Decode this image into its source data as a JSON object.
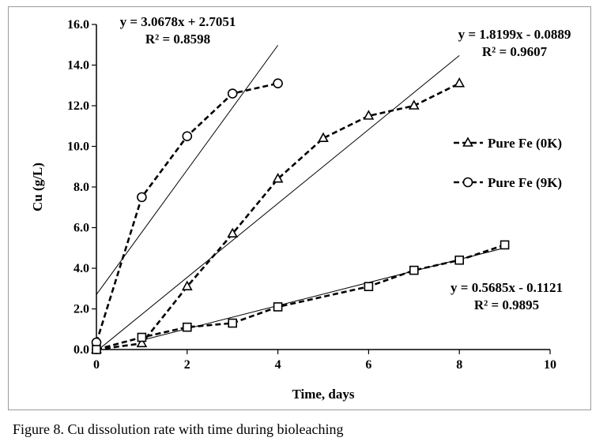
{
  "caption": "Figure 8. Cu dissolution rate with time during bioleaching",
  "chart_data": {
    "type": "scatter",
    "xlabel": "Time, days",
    "ylabel": "Cu (g/L)",
    "xlim": [
      0,
      10
    ],
    "ylim": [
      0,
      16
    ],
    "x_ticks": [
      "0",
      "2",
      "4",
      "6",
      "8",
      "10"
    ],
    "y_ticks": [
      "0.0",
      "2.0",
      "4.0",
      "6.0",
      "8.0",
      "10.0",
      "12.0",
      "14.0",
      "16.0"
    ],
    "grid": false,
    "legend_position": "right",
    "series": [
      {
        "name": "Pure Fe (0K)",
        "marker": "triangle",
        "line_style": "dashed",
        "color": "#000000",
        "x": [
          0,
          1,
          2,
          3,
          4,
          5,
          6,
          7,
          8
        ],
        "y": [
          0.0,
          0.3,
          3.1,
          5.7,
          8.4,
          10.4,
          11.5,
          12.0,
          13.1
        ]
      },
      {
        "name": "Pure Fe (9K)",
        "marker": "circle",
        "line_style": "dashed",
        "color": "#000000",
        "x": [
          0,
          1,
          2,
          3,
          4
        ],
        "y": [
          0.35,
          7.5,
          10.5,
          12.6,
          13.1
        ]
      },
      {
        "marker": "square",
        "line_style": "dashed",
        "color": "#000000",
        "x": [
          0,
          1,
          2,
          3,
          4,
          6,
          7,
          8,
          9
        ],
        "y": [
          0.0,
          0.6,
          1.1,
          1.3,
          2.1,
          3.1,
          3.9,
          4.4,
          5.15
        ]
      }
    ],
    "trendlines": [
      {
        "slope": 3.0678,
        "intercept": 2.7051,
        "x_range": [
          0,
          4
        ],
        "equation": "y = 3.0678x + 2.7051",
        "r2": "R² = 0.8598"
      },
      {
        "slope": 1.8199,
        "intercept": -0.0889,
        "x_range": [
          0,
          8
        ],
        "equation": "y = 1.8199x - 0.0889",
        "r2": "R² = 0.9607"
      },
      {
        "slope": 0.5685,
        "intercept": -0.1121,
        "x_range": [
          1,
          9
        ],
        "equation": "y = 0.5685x - 0.1121",
        "r2": "R² = 0.9895"
      }
    ]
  }
}
